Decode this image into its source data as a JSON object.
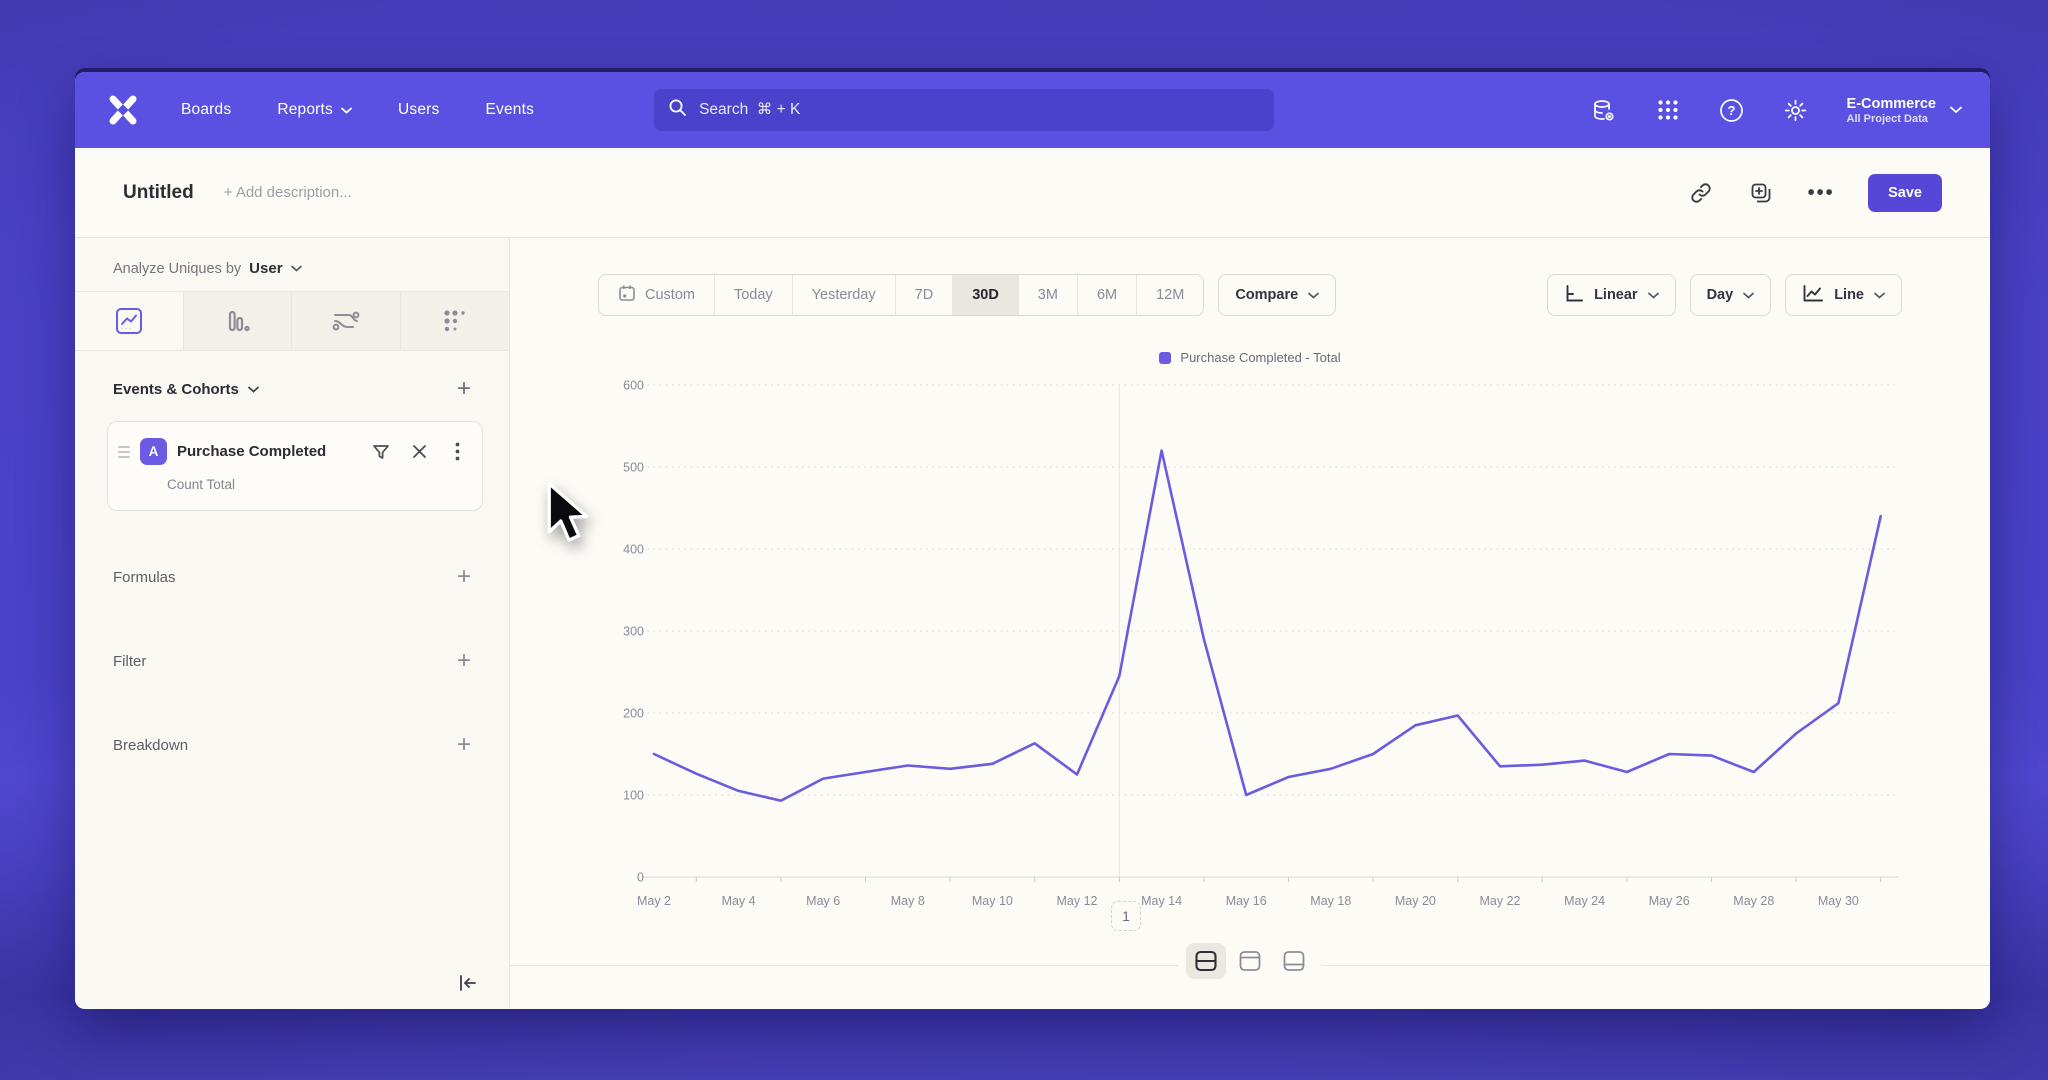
{
  "topnav": {
    "items": [
      {
        "label": "Boards",
        "has_chevron": false
      },
      {
        "label": "Reports",
        "has_chevron": true
      },
      {
        "label": "Users",
        "has_chevron": false
      },
      {
        "label": "Events",
        "has_chevron": false
      }
    ],
    "search": {
      "placeholder": "Search  ⌘ + K"
    },
    "right_icons": [
      "data-management-icon",
      "apps-grid-icon",
      "help-icon",
      "settings-gear-icon"
    ],
    "project": {
      "name": "E-Commerce",
      "subtitle": "All Project Data"
    }
  },
  "header": {
    "title": "Untitled",
    "description_placeholder": "+ Add description...",
    "actions": [
      "link-icon",
      "duplicate-icon",
      "more-ellipsis-icon"
    ],
    "save_label": "Save"
  },
  "sidebar": {
    "analyze": {
      "prefix": "Analyze Uniques by",
      "value": "User"
    },
    "tabs": [
      "insights-line-tab",
      "bar-chart-tab",
      "flows-tab",
      "retention-dots-tab"
    ],
    "active_tab_index": 0,
    "events_section": {
      "title": "Events & Cohorts"
    },
    "event_card": {
      "badge": "A",
      "name": "Purchase Completed",
      "metric": "Count Total",
      "icons": [
        "filter-funnel-icon",
        "remove-x-icon",
        "kebab-menu-icon"
      ]
    },
    "sections": [
      {
        "label": "Formulas"
      },
      {
        "label": "Filter"
      },
      {
        "label": "Breakdown"
      }
    ]
  },
  "toolbar": {
    "ranges": [
      "Custom",
      "Today",
      "Yesterday",
      "7D",
      "30D",
      "3M",
      "6M",
      "12M"
    ],
    "active_range": "30D",
    "compare_label": "Compare",
    "scale_label": "Linear",
    "interval_label": "Day",
    "chart_type_label": "Line"
  },
  "chart_data": {
    "type": "line",
    "legend": [
      "Purchase Completed - Total"
    ],
    "x": [
      "May 2",
      "May 3",
      "May 4",
      "May 5",
      "May 6",
      "May 7",
      "May 8",
      "May 9",
      "May 10",
      "May 11",
      "May 12",
      "May 13",
      "May 14",
      "May 15",
      "May 16",
      "May 17",
      "May 18",
      "May 19",
      "May 20",
      "May 21",
      "May 22",
      "May 23",
      "May 24",
      "May 25",
      "May 26",
      "May 27",
      "May 28",
      "May 29",
      "May 30",
      "May 31"
    ],
    "series": [
      {
        "name": "Purchase Completed - Total",
        "color": "#6a5be2",
        "values": [
          150,
          126,
          105,
          93,
          120,
          128,
          136,
          132,
          138,
          163,
          125,
          245,
          520,
          290,
          100,
          122,
          132,
          150,
          185,
          197,
          135,
          137,
          142,
          128,
          150,
          148,
          128,
          175,
          212,
          440
        ]
      }
    ],
    "ylim": [
      0,
      600
    ],
    "yticks": [
      0,
      100,
      200,
      300,
      400,
      500,
      600
    ],
    "x_label_every": 2,
    "vertical_gridline_at": "May 13",
    "grid": "dotted-horizontal",
    "legend_position": "top-center"
  },
  "footer": {
    "page": "1",
    "layout_icons": [
      "split-view-icon",
      "chart-only-icon",
      "table-only-icon"
    ],
    "active_layout_index": 0
  },
  "colors": {
    "navbar": "#5a50e2",
    "accent": "#6a5be2",
    "save_button": "#5747d8",
    "search_bg": "#4b42cb",
    "text_gray": "#8b8b95"
  }
}
